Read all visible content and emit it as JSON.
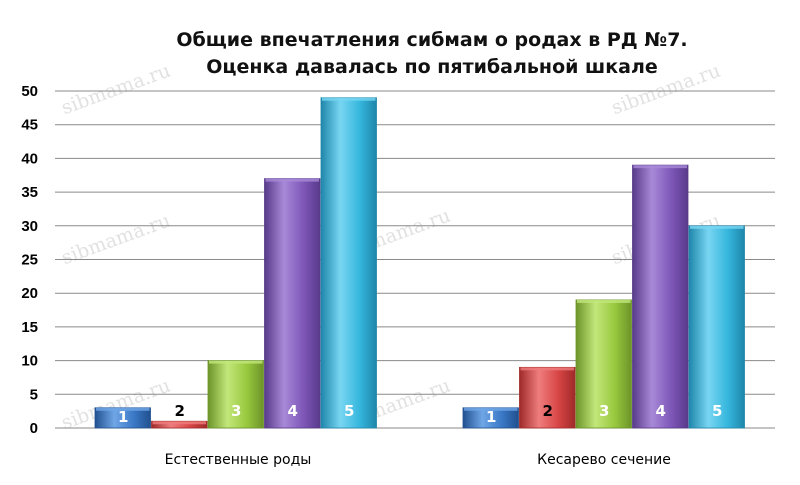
{
  "chart_data": {
    "type": "bar",
    "title": [
      "Общие впечатления сибмам о родах в РД №7.",
      "Оценка давалась по пятибальной шкале"
    ],
    "categories": [
      "Естественные роды",
      "Кесарево сечение"
    ],
    "series": [
      {
        "name": "1",
        "values": [
          3,
          3
        ],
        "color": "#3a78c6",
        "color_light": "#6fa6e6",
        "color_dark": "#21508f",
        "label_color": "#ffffff"
      },
      {
        "name": "2",
        "values": [
          1,
          9
        ],
        "color": "#d84545",
        "color_light": "#ef7d7d",
        "color_dark": "#a02a2a",
        "label_color": "#000000"
      },
      {
        "name": "3",
        "values": [
          10,
          19
        ],
        "color": "#98c83e",
        "color_light": "#c2e77a",
        "color_dark": "#6c9428",
        "label_color": "#ffffff"
      },
      {
        "name": "4",
        "values": [
          37,
          39
        ],
        "color": "#7e57b8",
        "color_light": "#a889d8",
        "color_dark": "#583a8a",
        "label_color": "#ffffff"
      },
      {
        "name": "5",
        "values": [
          49,
          30
        ],
        "color": "#35b6dd",
        "color_light": "#78d6f2",
        "color_dark": "#1f86aa",
        "label_color": "#ffffff"
      }
    ],
    "data_labels": [
      [
        "1",
        "2",
        "3",
        "4",
        "5"
      ],
      [
        "1",
        "2",
        "3",
        "4",
        "5"
      ]
    ],
    "ylim": [
      0,
      50
    ],
    "yticks": [
      0,
      5,
      10,
      15,
      20,
      25,
      30,
      35,
      40,
      45,
      50
    ],
    "grid": true,
    "legend": "none",
    "watermark": "sibmama.ru"
  }
}
